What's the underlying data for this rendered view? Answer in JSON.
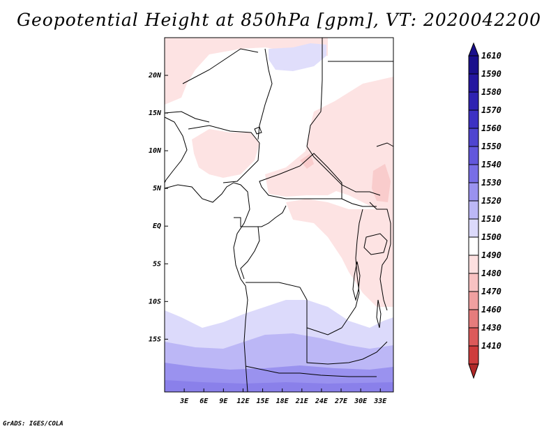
{
  "title": "Geopotential Height at 850hPa [gpm], VT: 2020042200",
  "footer": "GrADS: IGES/COLA",
  "colors": {
    "map_border": "#000000",
    "country_line": "#000000"
  },
  "map": {
    "lon_range": [
      0,
      35
    ],
    "lat_range": [
      -22,
      25
    ],
    "lat_ticks": [
      {
        "value": 20,
        "label": "20N"
      },
      {
        "value": 15,
        "label": "15N"
      },
      {
        "value": 10,
        "label": "10N"
      },
      {
        "value": 5,
        "label": "5N"
      },
      {
        "value": 0,
        "label": "EQ"
      },
      {
        "value": -5,
        "label": "5S"
      },
      {
        "value": -10,
        "label": "10S"
      },
      {
        "value": -15,
        "label": "15S"
      }
    ],
    "lon_ticks": [
      {
        "value": 3,
        "label": "3E"
      },
      {
        "value": 6,
        "label": "6E"
      },
      {
        "value": 9,
        "label": "9E"
      },
      {
        "value": 12,
        "label": "12E"
      },
      {
        "value": 15,
        "label": "15E"
      },
      {
        "value": 18,
        "label": "18E"
      },
      {
        "value": 21,
        "label": "21E"
      },
      {
        "value": 24,
        "label": "24E"
      },
      {
        "value": 27,
        "label": "27E"
      },
      {
        "value": 30,
        "label": "30E"
      },
      {
        "value": 33,
        "label": "33E"
      }
    ]
  },
  "colorbar": {
    "levels": [
      {
        "label": "1610",
        "color": "#1a0f8c"
      },
      {
        "label": "1590",
        "color": "#2416a0"
      },
      {
        "label": "1580",
        "color": "#2f22b2"
      },
      {
        "label": "1570",
        "color": "#3d31c3"
      },
      {
        "label": "1560",
        "color": "#4f45d0"
      },
      {
        "label": "1550",
        "color": "#6257dc"
      },
      {
        "label": "1540",
        "color": "#786ee6"
      },
      {
        "label": "1530",
        "color": "#9a92ef"
      },
      {
        "label": "1520",
        "color": "#bcb7f6"
      },
      {
        "label": "1510",
        "color": "#dcdafb"
      },
      {
        "label": "1500",
        "color": "#ffffff"
      },
      {
        "label": "1490",
        "color": "#fde0e0"
      },
      {
        "label": "1480",
        "color": "#f8c2c2"
      },
      {
        "label": "1470",
        "color": "#f0a0a0"
      },
      {
        "label": "1460",
        "color": "#e67c7c"
      },
      {
        "label": "1430",
        "color": "#dc5a5a"
      },
      {
        "label": "1410",
        "color": "#ce3c3c"
      }
    ],
    "bottom_color": "#b02828"
  }
}
